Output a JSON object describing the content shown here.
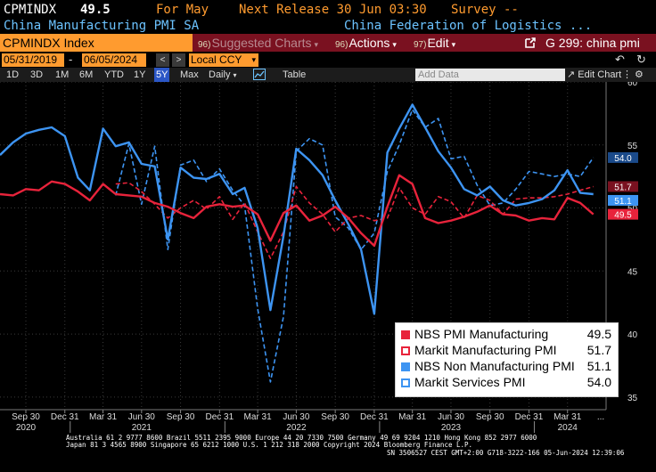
{
  "header": {
    "ticker": "CPMINDX",
    "last_value": "49.5",
    "for_label": "For May",
    "next_release": "Next Release 30 Jun 03:30",
    "survey": "Survey --",
    "description": "China Manufacturing PMI SA",
    "source": "China Federation of Logistics ..."
  },
  "toolbar": {
    "index_label": "CPMINDX Index",
    "suggested": {
      "num": "96)",
      "label": "Suggested Charts"
    },
    "actions": {
      "num": "96)",
      "label": "Actions"
    },
    "edit": {
      "num": "97)",
      "label": "Edit"
    },
    "function": "G 299: china pmi"
  },
  "dates": {
    "start": "05/31/2019",
    "end": "06/05/2024",
    "currency": "Local CCY"
  },
  "periods": {
    "items": [
      "1D",
      "3D",
      "1M",
      "6M",
      "YTD",
      "1Y",
      "5Y",
      "Max"
    ],
    "active": "5Y",
    "frequency": "Daily",
    "table_label": "Table",
    "add_data_placeholder": "Add Data",
    "edit_chart": "Edit Chart"
  },
  "chart_data": {
    "type": "line",
    "ylim": [
      34,
      60
    ],
    "yticks": [
      35,
      40,
      45,
      50,
      55,
      60
    ],
    "x_start": "2020-07-31",
    "x_end": "2024-06-30",
    "month_ticks": [
      {
        "date": "2020-09-30",
        "label": "Sep 30"
      },
      {
        "date": "2020-12-31",
        "label": "Dec 31"
      },
      {
        "date": "2021-03-31",
        "label": "Mar 31"
      },
      {
        "date": "2021-06-30",
        "label": "Jun 30"
      },
      {
        "date": "2021-09-30",
        "label": "Sep 30"
      },
      {
        "date": "2021-12-31",
        "label": "Dec 31"
      },
      {
        "date": "2022-03-31",
        "label": "Mar 31"
      },
      {
        "date": "2022-06-30",
        "label": "Jun 30"
      },
      {
        "date": "2022-09-30",
        "label": "Sep 30"
      },
      {
        "date": "2022-12-31",
        "label": "Dec 31"
      },
      {
        "date": "2023-03-31",
        "label": "Mar 31"
      },
      {
        "date": "2023-06-30",
        "label": "Jun 30"
      },
      {
        "date": "2023-09-30",
        "label": "Sep 30"
      },
      {
        "date": "2023-12-31",
        "label": "Dec 31"
      },
      {
        "date": "2024-03-31",
        "label": "Mar 31"
      }
    ],
    "end_tick_label": "...",
    "year_labels": [
      {
        "date": "2020-09-30",
        "label": "2020"
      },
      {
        "date": "2021-06-30",
        "label": "2021"
      },
      {
        "date": "2022-06-30",
        "label": "2022"
      },
      {
        "date": "2023-06-30",
        "label": "2023"
      },
      {
        "date": "2024-03-31",
        "label": "2024"
      }
    ],
    "year_separators": [
      "2020-12-31",
      "2021-12-31",
      "2022-12-31",
      "2023-12-31"
    ],
    "series": [
      {
        "name": "NBS PMI Manufacturing",
        "color": "#e8233b",
        "style": "solid",
        "last": "49.5",
        "x": [
          "2020-07-31",
          "2020-08-31",
          "2020-09-30",
          "2020-10-31",
          "2020-11-30",
          "2020-12-31",
          "2021-01-31",
          "2021-02-28",
          "2021-03-31",
          "2021-04-30",
          "2021-05-31",
          "2021-06-30",
          "2021-07-31",
          "2021-08-31",
          "2021-09-30",
          "2021-10-31",
          "2021-11-30",
          "2021-12-31",
          "2022-01-31",
          "2022-02-28",
          "2022-03-31",
          "2022-04-30",
          "2022-05-31",
          "2022-06-30",
          "2022-07-31",
          "2022-08-31",
          "2022-09-30",
          "2022-10-31",
          "2022-11-30",
          "2022-12-31",
          "2023-01-31",
          "2023-02-28",
          "2023-03-31",
          "2023-04-30",
          "2023-05-31",
          "2023-06-30",
          "2023-07-31",
          "2023-08-31",
          "2023-09-30",
          "2023-10-31",
          "2023-11-30",
          "2023-12-31",
          "2024-01-31",
          "2024-02-29",
          "2024-03-31",
          "2024-04-30",
          "2024-05-31"
        ],
        "values": [
          51.1,
          51.0,
          51.5,
          51.4,
          52.1,
          51.9,
          51.3,
          50.6,
          51.9,
          51.1,
          51.0,
          50.9,
          50.4,
          50.1,
          49.6,
          49.2,
          50.1,
          50.3,
          50.1,
          50.2,
          49.5,
          47.4,
          49.6,
          50.2,
          49.0,
          49.4,
          50.1,
          49.2,
          48.0,
          47.0,
          50.1,
          52.6,
          51.9,
          49.2,
          48.8,
          49.0,
          49.3,
          49.7,
          50.2,
          49.5,
          49.4,
          49.0,
          49.2,
          49.1,
          50.8,
          50.4,
          49.5
        ]
      },
      {
        "name": "Markit Manufacturing PMI",
        "color": "#e8233b",
        "style": "dashed",
        "last": "51.7",
        "x": [
          "2021-04-30",
          "2021-05-31",
          "2021-06-30",
          "2021-07-31",
          "2021-08-31",
          "2021-09-30",
          "2021-10-31",
          "2021-11-30",
          "2021-12-31",
          "2022-01-31",
          "2022-02-28",
          "2022-03-31",
          "2022-04-30",
          "2022-05-31",
          "2022-06-30",
          "2022-07-31",
          "2022-08-31",
          "2022-09-30",
          "2022-10-31",
          "2022-11-30",
          "2022-12-31",
          "2023-01-31",
          "2023-02-28",
          "2023-03-31",
          "2023-04-30",
          "2023-05-31",
          "2023-06-30",
          "2023-07-31",
          "2023-08-31",
          "2023-09-30",
          "2023-10-31",
          "2023-11-30",
          "2023-12-31",
          "2024-01-31",
          "2024-02-29",
          "2024-03-31",
          "2024-04-30",
          "2024-05-31"
        ],
        "values": [
          51.9,
          52.0,
          51.3,
          50.3,
          49.2,
          50.0,
          50.6,
          49.9,
          50.9,
          49.1,
          50.4,
          48.1,
          46.0,
          48.1,
          51.7,
          50.4,
          49.5,
          48.1,
          49.2,
          49.4,
          49.0,
          49.2,
          51.6,
          50.0,
          49.5,
          50.9,
          50.5,
          49.2,
          51.0,
          50.6,
          49.5,
          50.7,
          50.8,
          50.8,
          50.9,
          51.1,
          51.4,
          51.7
        ]
      },
      {
        "name": "NBS Non Manufacturing PMI",
        "color": "#3d94f2",
        "style": "solid",
        "last": "51.1",
        "x": [
          "2020-07-31",
          "2020-08-31",
          "2020-09-30",
          "2020-10-31",
          "2020-11-30",
          "2020-12-31",
          "2021-01-31",
          "2021-02-28",
          "2021-03-31",
          "2021-04-30",
          "2021-05-31",
          "2021-06-30",
          "2021-07-31",
          "2021-08-31",
          "2021-09-30",
          "2021-10-31",
          "2021-11-30",
          "2021-12-31",
          "2022-01-31",
          "2022-02-28",
          "2022-03-31",
          "2022-04-30",
          "2022-05-31",
          "2022-06-30",
          "2022-07-31",
          "2022-08-31",
          "2022-09-30",
          "2022-10-31",
          "2022-11-30",
          "2022-12-31",
          "2023-01-31",
          "2023-02-28",
          "2023-03-31",
          "2023-04-30",
          "2023-05-31",
          "2023-06-30",
          "2023-07-31",
          "2023-08-31",
          "2023-09-30",
          "2023-10-31",
          "2023-11-30",
          "2023-12-31",
          "2024-01-31",
          "2024-02-29",
          "2024-03-31",
          "2024-04-30",
          "2024-05-31"
        ],
        "values": [
          54.2,
          55.2,
          55.9,
          56.2,
          56.4,
          55.7,
          52.4,
          51.4,
          56.3,
          54.9,
          55.2,
          53.5,
          53.3,
          47.5,
          53.2,
          52.4,
          52.3,
          52.7,
          51.1,
          51.6,
          48.4,
          41.9,
          47.8,
          54.7,
          53.8,
          52.6,
          50.6,
          48.7,
          46.7,
          41.6,
          54.4,
          56.3,
          58.2,
          56.4,
          54.5,
          53.2,
          51.5,
          51.0,
          51.7,
          50.6,
          50.2,
          50.4,
          50.7,
          51.4,
          53.0,
          51.2,
          51.1
        ]
      },
      {
        "name": "Markit Services  PMI",
        "color": "#3d94f2",
        "style": "dashed",
        "last": "54.0",
        "x": [
          "2021-04-30",
          "2021-05-31",
          "2021-06-30",
          "2021-07-31",
          "2021-08-31",
          "2021-09-30",
          "2021-10-31",
          "2021-11-30",
          "2021-12-31",
          "2022-01-31",
          "2022-02-28",
          "2022-03-31",
          "2022-04-30",
          "2022-05-31",
          "2022-06-30",
          "2022-07-31",
          "2022-08-31",
          "2022-09-30",
          "2022-10-31",
          "2022-11-30",
          "2022-12-31",
          "2023-01-31",
          "2023-02-28",
          "2023-03-31",
          "2023-04-30",
          "2023-05-31",
          "2023-06-30",
          "2023-07-31",
          "2023-08-31",
          "2023-09-30",
          "2023-10-31",
          "2023-11-30",
          "2023-12-31",
          "2024-01-31",
          "2024-02-29",
          "2024-03-31",
          "2024-04-30",
          "2024-05-31"
        ],
        "values": [
          51.0,
          55.1,
          50.3,
          54.9,
          46.7,
          53.4,
          53.8,
          52.1,
          53.1,
          51.4,
          50.2,
          42.0,
          36.2,
          41.4,
          54.5,
          55.5,
          55.0,
          49.3,
          48.4,
          46.7,
          48.0,
          52.9,
          55.0,
          57.8,
          56.4,
          57.1,
          53.9,
          54.1,
          51.8,
          50.2,
          50.4,
          51.5,
          52.9,
          52.7,
          52.5,
          52.7,
          52.5,
          54.0
        ]
      }
    ]
  },
  "legend": {
    "entries": [
      {
        "name": "NBS PMI Manufacturing",
        "value": "49.5",
        "color": "#e8233b",
        "style": "solid"
      },
      {
        "name": "Markit Manufacturing PMI",
        "value": "51.7",
        "color": "#e8233b",
        "style": "dashed"
      },
      {
        "name": "NBS Non Manufacturing PMI",
        "value": "51.1",
        "color": "#3d94f2",
        "style": "solid"
      },
      {
        "name": "Markit Services  PMI",
        "value": "54.0",
        "color": "#3d94f2",
        "style": "dashed"
      }
    ]
  },
  "footer": {
    "line1": "Australia 61 2 9777 8600 Brazil 5511 2395 9000 Europe 44 20 7330 7500 Germany 49 69 9204 1210 Hong Kong 852 2977 6000",
    "line2": "Japan 81 3 4565 8900         Singapore 65 6212 1000         U.S. 1 212 318 2000                  Copyright 2024 Bloomberg Finance L.P.",
    "line3": "SN 3506527 CEST GMT+2:00 G718-3222-166 05-Jun-2024 12:39:06"
  }
}
